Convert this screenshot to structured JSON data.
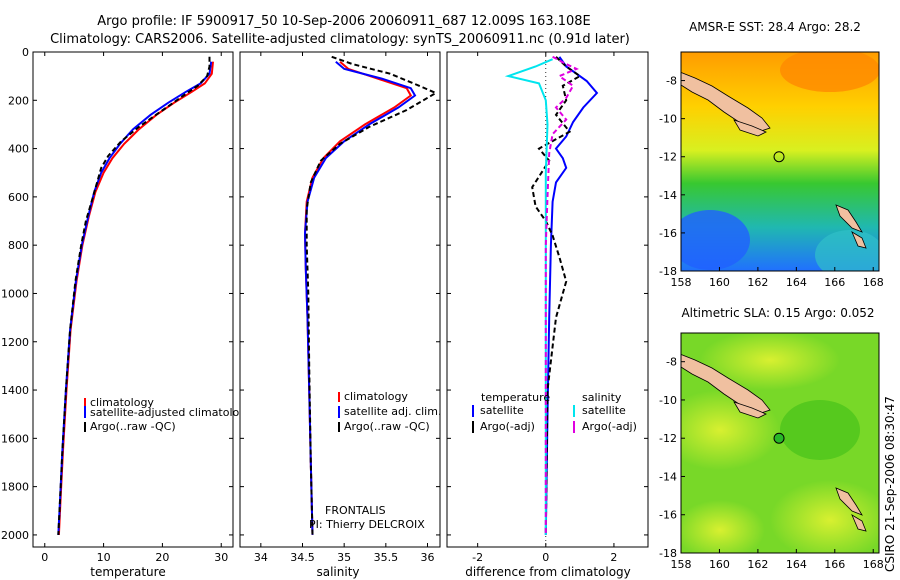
{
  "header": {
    "line1": "Argo profile: IF 5900917_50 10-Sep-2006 20060911_687 12.009S 163.108E",
    "line2": "Climatology: CARS2006. Satellite-adjusted climatology: synTS_20060911.nc (0.91d later)"
  },
  "side_text": "CSIRO 21-Sep-2006 08:30:47",
  "chart_data": [
    {
      "type": "line",
      "id": "temperature",
      "xlabel": "temperature",
      "ylabel": "",
      "xlim": [
        -2,
        32
      ],
      "ylim": [
        2050,
        0
      ],
      "xticks": [
        0,
        10,
        20,
        30
      ],
      "yticks": [
        0,
        200,
        400,
        600,
        800,
        1000,
        1200,
        1400,
        1600,
        1800,
        2000
      ],
      "legend": [
        "climatology",
        "satellite-adjusted climatology",
        "Argo(..raw -QC)"
      ],
      "series": [
        {
          "name": "climatology",
          "color": "#ff0000",
          "dash": "",
          "points": [
            [
              28.6,
              40
            ],
            [
              28.4,
              90
            ],
            [
              27.2,
              130
            ],
            [
              25.0,
              165
            ],
            [
              22.0,
              210
            ],
            [
              19.0,
              260
            ],
            [
              16.0,
              320
            ],
            [
              13.5,
              380
            ],
            [
              11.5,
              440
            ],
            [
              10.0,
              500
            ],
            [
              8.6,
              580
            ],
            [
              7.5,
              680
            ],
            [
              6.4,
              800
            ],
            [
              5.4,
              950
            ],
            [
              4.4,
              1150
            ],
            [
              3.7,
              1400
            ],
            [
              3.1,
              1650
            ],
            [
              2.7,
              1850
            ],
            [
              2.4,
              2000
            ]
          ]
        },
        {
          "name": "satellite-adjusted climatology",
          "color": "#0000ff",
          "dash": "",
          "points": [
            [
              28.3,
              40
            ],
            [
              28.0,
              90
            ],
            [
              26.5,
              130
            ],
            [
              24.0,
              165
            ],
            [
              21.0,
              210
            ],
            [
              18.0,
              260
            ],
            [
              15.0,
              320
            ],
            [
              12.8,
              380
            ],
            [
              11.0,
              440
            ],
            [
              9.6,
              500
            ],
            [
              8.4,
              580
            ],
            [
              7.4,
              680
            ],
            [
              6.3,
              800
            ],
            [
              5.3,
              950
            ],
            [
              4.3,
              1150
            ],
            [
              3.6,
              1400
            ],
            [
              3.0,
              1650
            ],
            [
              2.6,
              1850
            ],
            [
              2.3,
              2000
            ]
          ]
        },
        {
          "name": "Argo(..raw -QC)",
          "color": "#000000",
          "dash": "5,3",
          "points": [
            [
              28.0,
              20
            ],
            [
              28.0,
              60
            ],
            [
              27.6,
              100
            ],
            [
              26.0,
              140
            ],
            [
              23.0,
              190
            ],
            [
              19.5,
              250
            ],
            [
              16.0,
              310
            ],
            [
              13.0,
              370
            ],
            [
              10.8,
              430
            ],
            [
              9.6,
              480
            ],
            [
              8.2,
              600
            ],
            [
              7.0,
              700
            ],
            [
              6.2,
              800
            ],
            [
              5.2,
              950
            ],
            [
              4.3,
              1150
            ],
            [
              3.6,
              1400
            ],
            [
              3.0,
              1650
            ],
            [
              2.6,
              1850
            ],
            [
              2.3,
              2000
            ]
          ]
        }
      ]
    },
    {
      "type": "line",
      "id": "salinity",
      "xlabel": "salinity",
      "ylabel": "",
      "xlim": [
        33.75,
        36.15
      ],
      "ylim": [
        2050,
        0
      ],
      "xticks": [
        34,
        34.5,
        35,
        35.5,
        36
      ],
      "legend": [
        "climatology",
        "satellite adj. clim.",
        "Argo(..raw -QC)"
      ],
      "series": [
        {
          "name": "climatology",
          "color": "#ff0000",
          "dash": "",
          "points": [
            [
              34.95,
              40
            ],
            [
              35.05,
              70
            ],
            [
              35.4,
              110
            ],
            [
              35.75,
              150
            ],
            [
              35.8,
              180
            ],
            [
              35.6,
              230
            ],
            [
              35.25,
              300
            ],
            [
              34.95,
              370
            ],
            [
              34.75,
              440
            ],
            [
              34.62,
              520
            ],
            [
              34.55,
              620
            ],
            [
              34.53,
              750
            ],
            [
              34.54,
              900
            ],
            [
              34.56,
              1100
            ],
            [
              34.58,
              1400
            ],
            [
              34.6,
              1700
            ],
            [
              34.62,
              2000
            ]
          ]
        },
        {
          "name": "satellite adj. clim.",
          "color": "#0000ff",
          "dash": "",
          "points": [
            [
              34.9,
              40
            ],
            [
              35.0,
              70
            ],
            [
              35.45,
              110
            ],
            [
              35.8,
              150
            ],
            [
              35.85,
              180
            ],
            [
              35.65,
              230
            ],
            [
              35.3,
              300
            ],
            [
              35.0,
              370
            ],
            [
              34.78,
              440
            ],
            [
              34.64,
              520
            ],
            [
              34.56,
              620
            ],
            [
              34.53,
              750
            ],
            [
              34.54,
              900
            ],
            [
              34.56,
              1100
            ],
            [
              34.58,
              1400
            ],
            [
              34.6,
              1700
            ],
            [
              34.62,
              2000
            ]
          ]
        },
        {
          "name": "Argo(..raw -QC)",
          "color": "#000000",
          "dash": "5,3",
          "points": [
            [
              34.85,
              20
            ],
            [
              35.1,
              50
            ],
            [
              35.55,
              90
            ],
            [
              35.9,
              140
            ],
            [
              36.1,
              170
            ],
            [
              35.75,
              240
            ],
            [
              35.3,
              310
            ],
            [
              34.95,
              380
            ],
            [
              34.72,
              450
            ],
            [
              34.6,
              540
            ],
            [
              34.55,
              650
            ],
            [
              34.55,
              800
            ],
            [
              34.57,
              1000
            ],
            [
              34.58,
              1300
            ],
            [
              34.6,
              1700
            ],
            [
              34.62,
              2000
            ]
          ]
        }
      ]
    },
    {
      "type": "line",
      "id": "difference",
      "xlabel": "difference from climatology",
      "ylabel": "",
      "xlim": [
        -2.9,
        3.0
      ],
      "ylim": [
        2050,
        0
      ],
      "xticks": [
        -2,
        0,
        2
      ],
      "legend_headers": [
        "temperature",
        "salinity"
      ],
      "legend": [
        "satellite",
        "Argo(-adj)",
        "satellite",
        "Argo(-adj)"
      ],
      "series": [
        {
          "name": "temperature satellite",
          "color": "#0000ff",
          "dash": "",
          "points": [
            [
              0.4,
              20
            ],
            [
              0.6,
              60
            ],
            [
              0.9,
              90
            ],
            [
              1.2,
              120
            ],
            [
              1.5,
              170
            ],
            [
              1.1,
              230
            ],
            [
              0.8,
              290
            ],
            [
              0.6,
              350
            ],
            [
              0.3,
              400
            ],
            [
              0.5,
              440
            ],
            [
              0.6,
              480
            ],
            [
              0.3,
              540
            ],
            [
              0.2,
              620
            ],
            [
              0.15,
              800
            ],
            [
              0.1,
              1100
            ],
            [
              0.05,
              1500
            ],
            [
              0.0,
              2000
            ]
          ]
        },
        {
          "name": "temperature Argo(-adj)",
          "color": "#000000",
          "dash": "5,3",
          "points": [
            [
              0.3,
              20
            ],
            [
              0.6,
              60
            ],
            [
              1.0,
              100
            ],
            [
              0.5,
              140
            ],
            [
              0.6,
              200
            ],
            [
              0.3,
              260
            ],
            [
              0.7,
              330
            ],
            [
              -0.2,
              400
            ],
            [
              0.1,
              450
            ],
            [
              -0.4,
              560
            ],
            [
              -0.3,
              640
            ],
            [
              0.0,
              700
            ],
            [
              0.2,
              760
            ],
            [
              0.4,
              850
            ],
            [
              0.6,
              950
            ],
            [
              0.3,
              1100
            ],
            [
              0.05,
              1400
            ],
            [
              0.0,
              2000
            ]
          ]
        },
        {
          "name": "salinity satellite",
          "color": "#00e5ee",
          "dash": "",
          "points": [
            [
              0.2,
              30
            ],
            [
              -0.3,
              60
            ],
            [
              -1.1,
              100
            ],
            [
              -0.2,
              130
            ],
            [
              0.0,
              200
            ],
            [
              0.05,
              300
            ],
            [
              0.0,
              500
            ],
            [
              0.0,
              800
            ],
            [
              0.0,
              1200
            ],
            [
              0.0,
              2000
            ]
          ]
        },
        {
          "name": "salinity Argo(-adj)",
          "color": "#e000e0",
          "dash": "5,3",
          "points": [
            [
              0.2,
              20
            ],
            [
              0.6,
              50
            ],
            [
              0.9,
              70
            ],
            [
              0.4,
              100
            ],
            [
              0.8,
              140
            ],
            [
              0.6,
              190
            ],
            [
              0.3,
              230
            ],
            [
              0.6,
              280
            ],
            [
              0.2,
              340
            ],
            [
              0.1,
              420
            ],
            [
              0.05,
              600
            ],
            [
              0.0,
              800
            ],
            [
              0.0,
              2000
            ]
          ]
        }
      ]
    },
    {
      "type": "heatmap",
      "id": "sst_map",
      "title": "AMSR-E SST: 28.4 Argo: 28.2",
      "xlim": [
        158,
        168.3
      ],
      "ylim": [
        -18,
        -6.5
      ],
      "xticks": [
        158,
        160,
        162,
        164,
        166,
        168
      ],
      "yticks": [
        -8,
        -10,
        -12,
        -14,
        -16,
        -18
      ],
      "argo_position": [
        163.1,
        -12.0
      ]
    },
    {
      "type": "heatmap",
      "id": "sla_map",
      "title": "Altimetric SLA: 0.15 Argo: 0.052",
      "xlim": [
        158,
        168.3
      ],
      "ylim": [
        -18,
        -6.5
      ],
      "xticks": [
        158,
        160,
        162,
        164,
        166,
        168
      ],
      "yticks": [
        -8,
        -10,
        -12,
        -14,
        -16,
        -18
      ],
      "argo_position": [
        163.1,
        -12.0
      ]
    }
  ],
  "annotations": {
    "frontalis": "FRONTALIS",
    "pi": "PI: Thierry DELCROIX"
  }
}
